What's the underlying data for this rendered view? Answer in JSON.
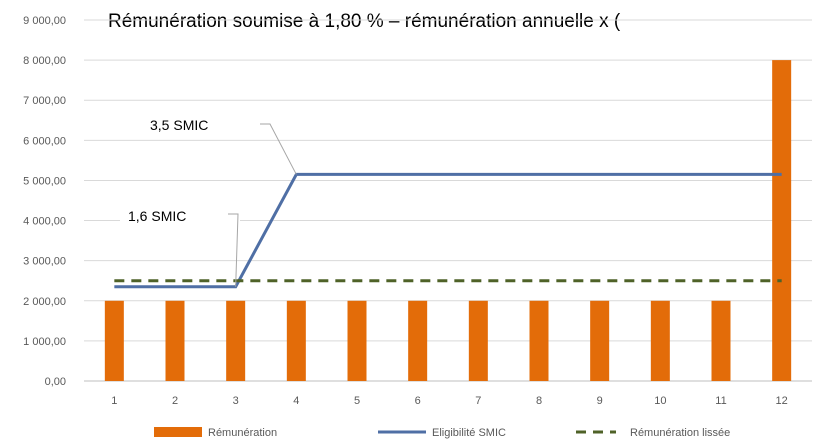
{
  "chart_data": {
    "type": "bar",
    "title": "Rémunération soumise à 1,80 % – rémunération annuelle x (",
    "categories": [
      "1",
      "2",
      "3",
      "4",
      "5",
      "6",
      "7",
      "8",
      "9",
      "10",
      "11",
      "12"
    ],
    "ylim": [
      0,
      9000
    ],
    "y_ticks": [
      0,
      1000,
      2000,
      3000,
      4000,
      5000,
      6000,
      7000,
      8000,
      9000
    ],
    "y_tick_labels": [
      "0,00",
      "1 000,00",
      "2 000,00",
      "3 000,00",
      "4 000,00",
      "5 000,00",
      "6 000,00",
      "7 000,00",
      "8 000,00",
      "9 000,00"
    ],
    "grid": true,
    "legend_position": "bottom",
    "series": [
      {
        "name": "Rémunération",
        "kind": "bar",
        "color": "#E36C09",
        "values": [
          2000,
          2000,
          2000,
          2000,
          2000,
          2000,
          2000,
          2000,
          2000,
          2000,
          2000,
          8000
        ]
      },
      {
        "name": "Eligibilité SMIC",
        "kind": "line",
        "color": "#4F6FA5",
        "values": [
          2350,
          2350,
          2350,
          5150,
          5150,
          5150,
          5150,
          5150,
          5150,
          5150,
          5150,
          5150
        ]
      },
      {
        "name": "Rémunération lissée",
        "kind": "dashed-line",
        "color": "#4F6228",
        "values": [
          2500,
          2500,
          2500,
          2500,
          2500,
          2500,
          2500,
          2500,
          2500,
          2500,
          2500,
          2500
        ]
      }
    ],
    "annotations": [
      {
        "text": "3,5 SMIC",
        "target_index": 3,
        "target_value": 5150
      },
      {
        "text": "1,6 SMIC",
        "target_index": 2,
        "target_value": 2350
      }
    ]
  }
}
